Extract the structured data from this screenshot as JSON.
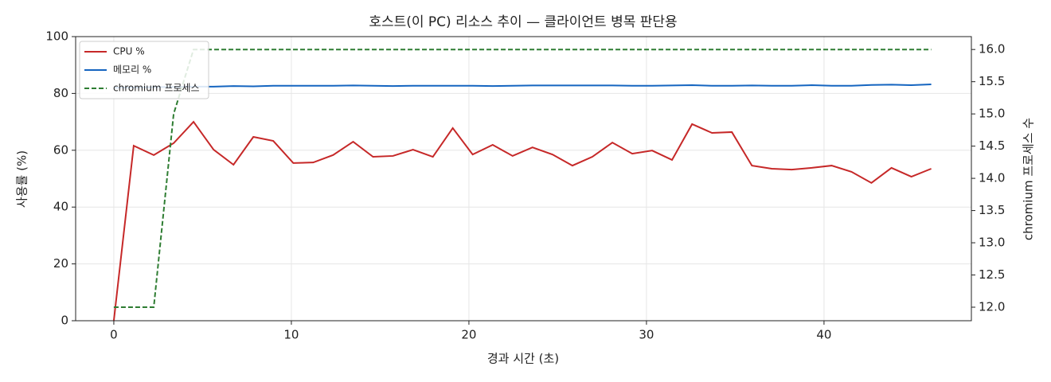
{
  "chart_data": {
    "type": "line",
    "title": "호스트(이 PC) 리소스 추이 — 클라이언트 병목 판단용",
    "x_label": "경과 시간 (초)",
    "y_label": "사용률 (%)",
    "y2_label": "chromium 프로세스 수",
    "x": [
      0,
      1.12,
      2.25,
      3.37,
      4.49,
      5.62,
      6.74,
      7.86,
      8.98,
      10.11,
      11.23,
      12.35,
      13.48,
      14.6,
      15.72,
      16.85,
      17.97,
      19.09,
      20.21,
      21.34,
      22.46,
      23.58,
      24.71,
      25.83,
      26.95,
      28.08,
      29.2,
      30.32,
      31.44,
      32.57,
      33.69,
      34.81,
      35.94,
      37.06,
      38.18,
      39.31,
      40.43,
      41.55,
      42.67,
      43.8,
      44.92,
      46.04
    ],
    "series": [
      {
        "name": "CPU %",
        "color": "#c62828",
        "linestyle": "solid",
        "values": [
          0,
          61.6,
          58.3,
          62.5,
          70,
          60.2,
          54.9,
          64.7,
          63.3,
          55.5,
          55.7,
          58.3,
          63,
          57.7,
          58,
          60.2,
          57.7,
          67.8,
          58.5,
          61.9,
          58,
          61,
          58.5,
          54.6,
          57.7,
          62.7,
          58.8,
          59.9,
          56.6,
          69.2,
          66.1,
          66.4,
          54.6,
          53.5,
          53.2,
          53.8,
          54.6,
          52.4,
          48.5,
          53.8,
          50.7,
          53.5
        ]
      },
      {
        "name": "메모리 %",
        "color": "#1565c0",
        "linestyle": "solid",
        "values": [
          82.0,
          82.1,
          82.2,
          82.3,
          82.4,
          82.4,
          82.6,
          82.5,
          82.7,
          82.7,
          82.7,
          82.7,
          82.8,
          82.7,
          82.6,
          82.7,
          82.7,
          82.7,
          82.7,
          82.6,
          82.7,
          82.8,
          82.8,
          82.8,
          82.8,
          82.8,
          82.7,
          82.7,
          82.8,
          82.9,
          82.7,
          82.7,
          82.8,
          82.7,
          82.7,
          82.9,
          82.7,
          82.7,
          83.0,
          83.1,
          82.9,
          83.2
        ]
      },
      {
        "name": "chromium 프로세스",
        "color": "#2e7d32",
        "linestyle": "dashed",
        "axis": "y2",
        "values": [
          12,
          12,
          12,
          15,
          16,
          16,
          16,
          16,
          16,
          16,
          16,
          16,
          16,
          16,
          16,
          16,
          16,
          16,
          16,
          16,
          16,
          16,
          16,
          16,
          16,
          16,
          16,
          16,
          16,
          16,
          16,
          16,
          16,
          16,
          16,
          16,
          16,
          16,
          16,
          16,
          16,
          16
        ]
      }
    ],
    "xlim": [
      -2.15,
      48.3
    ],
    "xticks": [
      0,
      10,
      20,
      30,
      40
    ],
    "ylim": [
      0,
      100
    ],
    "yticks": [
      0,
      20,
      40,
      60,
      80,
      100
    ],
    "y2lim": [
      11.79,
      16.2
    ],
    "y2ticks": [
      {
        "value": 12,
        "label": "12.0"
      },
      {
        "value": 12.5,
        "label": "12.5"
      },
      {
        "value": 13,
        "label": "13.0"
      },
      {
        "value": 13.5,
        "label": "13.5"
      },
      {
        "value": 14,
        "label": "14.0"
      },
      {
        "value": 14.5,
        "label": "14.5"
      },
      {
        "value": 15,
        "label": "15.0"
      },
      {
        "value": 15.5,
        "label": "15.5"
      },
      {
        "value": 16,
        "label": "16.0"
      }
    ],
    "grid": true,
    "legend": "upper-left"
  }
}
